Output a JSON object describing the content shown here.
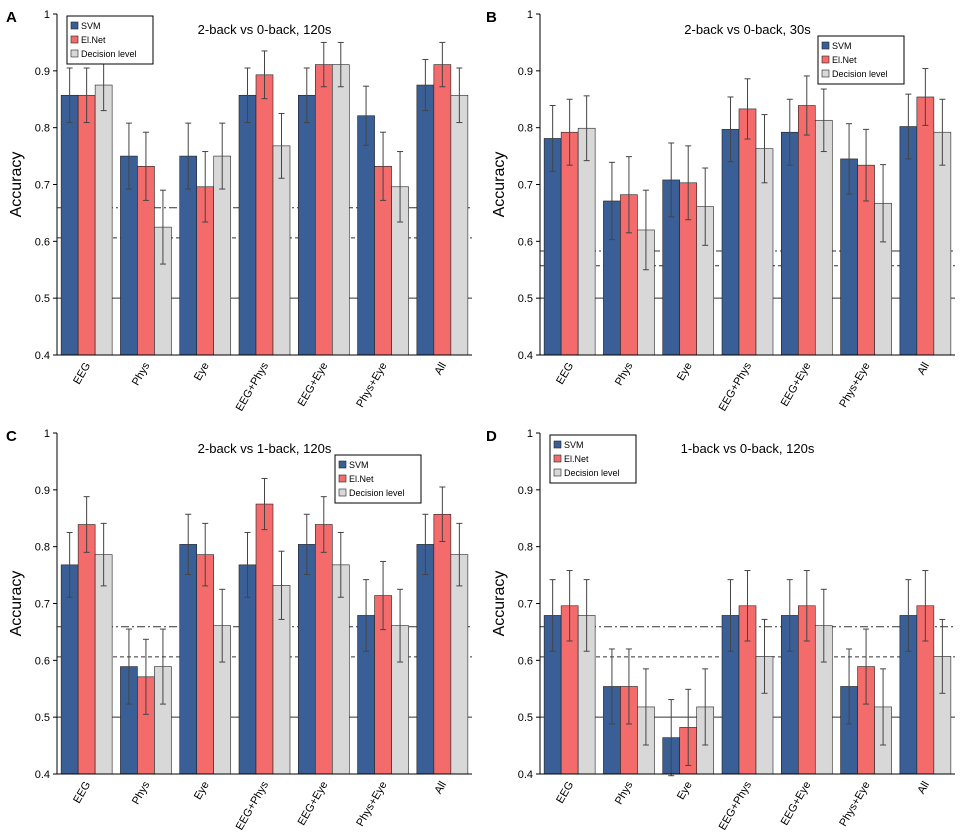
{
  "colors": {
    "svm": "#3a5f96",
    "elnet": "#f46b6b",
    "decision": "#d8d8d8"
  },
  "chart_data": [
    {
      "panel": "A",
      "type": "bar",
      "title": "2-back vs 0-back, 120s",
      "ylabel": "Accuracy",
      "ylim": [
        0.4,
        1.0
      ],
      "yticks": [
        "0.4",
        "0.5",
        "0.6",
        "0.7",
        "0.8",
        "0.9",
        "1"
      ],
      "categories": [
        "EEG",
        "Phys",
        "Eye",
        "EEG+Phys",
        "EEG+Eye",
        "Phys+Eye",
        "All"
      ],
      "legend": [
        "SVM",
        "El.Net",
        "Decision level"
      ],
      "legend_position": "top-left",
      "series": [
        {
          "name": "SVM",
          "values": [
            0.857,
            0.75,
            0.75,
            0.857,
            0.857,
            0.821,
            0.875
          ],
          "err": [
            0.048,
            0.058,
            0.058,
            0.048,
            0.048,
            0.052,
            0.045
          ]
        },
        {
          "name": "El.Net",
          "values": [
            0.857,
            0.732,
            0.696,
            0.893,
            0.911,
            0.732,
            0.911
          ],
          "err": [
            0.048,
            0.06,
            0.062,
            0.042,
            0.039,
            0.06,
            0.039
          ]
        },
        {
          "name": "Decision level",
          "values": [
            0.875,
            0.625,
            0.75,
            0.768,
            0.911,
            0.696,
            0.857
          ],
          "err": [
            0.045,
            0.065,
            0.058,
            0.057,
            0.039,
            0.062,
            0.048
          ]
        }
      ],
      "reference_lines": [
        0.5,
        0.606,
        0.659
      ]
    },
    {
      "panel": "B",
      "type": "bar",
      "title": "2-back vs 0-back, 30s",
      "ylabel": "Accuracy",
      "ylim": [
        0.4,
        1.0
      ],
      "yticks": [
        "0.4",
        "0.5",
        "0.6",
        "0.7",
        "0.8",
        "0.9",
        "1"
      ],
      "categories": [
        "EEG",
        "Phys",
        "Eye",
        "EEG+Phys",
        "EEG+Eye",
        "Phys+Eye",
        "All"
      ],
      "legend": [
        "SVM",
        "El.Net",
        "Decision level"
      ],
      "legend_position": "top-right",
      "series": [
        {
          "name": "SVM",
          "values": [
            0.781,
            0.671,
            0.708,
            0.797,
            0.792,
            0.745,
            0.802
          ],
          "err": [
            0.058,
            0.068,
            0.065,
            0.057,
            0.058,
            0.062,
            0.057
          ]
        },
        {
          "name": "El.Net",
          "values": [
            0.792,
            0.682,
            0.703,
            0.833,
            0.839,
            0.734,
            0.854
          ],
          "err": [
            0.058,
            0.067,
            0.065,
            0.053,
            0.052,
            0.063,
            0.05
          ]
        },
        {
          "name": "Decision level",
          "values": [
            0.799,
            0.62,
            0.661,
            0.763,
            0.813,
            0.667,
            0.792
          ],
          "err": [
            0.057,
            0.07,
            0.068,
            0.06,
            0.055,
            0.068,
            0.058
          ]
        }
      ],
      "reference_lines": [
        0.5,
        0.557,
        0.583
      ]
    },
    {
      "panel": "C",
      "type": "bar",
      "title": "2-back vs 1-back, 120s",
      "ylabel": "Accuracy",
      "ylim": [
        0.4,
        1.0
      ],
      "yticks": [
        "0.4",
        "0.5",
        "0.6",
        "0.7",
        "0.8",
        "0.9",
        "1"
      ],
      "categories": [
        "EEG",
        "Phys",
        "Eye",
        "EEG+Phys",
        "EEG+Eye",
        "Phys+Eye",
        "All"
      ],
      "legend": [
        "SVM",
        "El.Net",
        "Decision level"
      ],
      "legend_position": "top-right",
      "series": [
        {
          "name": "SVM",
          "values": [
            0.768,
            0.589,
            0.804,
            0.768,
            0.804,
            0.679,
            0.804
          ],
          "err": [
            0.057,
            0.066,
            0.053,
            0.057,
            0.053,
            0.063,
            0.053
          ]
        },
        {
          "name": "El.Net",
          "values": [
            0.839,
            0.571,
            0.786,
            0.875,
            0.839,
            0.714,
            0.857
          ],
          "err": [
            0.049,
            0.066,
            0.055,
            0.045,
            0.049,
            0.06,
            0.048
          ]
        },
        {
          "name": "Decision level",
          "values": [
            0.786,
            0.589,
            0.661,
            0.732,
            0.768,
            0.661,
            0.786
          ],
          "err": [
            0.055,
            0.066,
            0.064,
            0.06,
            0.057,
            0.064,
            0.055
          ]
        }
      ],
      "reference_lines": [
        0.5,
        0.606,
        0.659
      ]
    },
    {
      "panel": "D",
      "type": "bar",
      "title": "1-back vs 0-back, 120s",
      "ylabel": "Accuracy",
      "ylim": [
        0.4,
        1.0
      ],
      "yticks": [
        "0.4",
        "0.5",
        "0.6",
        "0.7",
        "0.8",
        "0.9",
        "1"
      ],
      "categories": [
        "EEG",
        "Phys",
        "Eye",
        "EEG+Phys",
        "EEG+Eye",
        "Phys+Eye",
        "All"
      ],
      "legend": [
        "SVM",
        "El.Net",
        "Decision level"
      ],
      "legend_position": "top-left",
      "series": [
        {
          "name": "SVM",
          "values": [
            0.679,
            0.554,
            0.464,
            0.679,
            0.679,
            0.554,
            0.679
          ],
          "err": [
            0.063,
            0.066,
            0.067,
            0.063,
            0.063,
            0.066,
            0.063
          ]
        },
        {
          "name": "El.Net",
          "values": [
            0.696,
            0.554,
            0.482,
            0.696,
            0.696,
            0.589,
            0.696
          ],
          "err": [
            0.062,
            0.066,
            0.067,
            0.062,
            0.062,
            0.066,
            0.062
          ]
        },
        {
          "name": "Decision level",
          "values": [
            0.679,
            0.518,
            0.518,
            0.607,
            0.661,
            0.518,
            0.607
          ],
          "err": [
            0.063,
            0.067,
            0.067,
            0.065,
            0.064,
            0.067,
            0.065
          ]
        }
      ],
      "reference_lines": [
        0.5,
        0.606,
        0.659
      ]
    }
  ]
}
